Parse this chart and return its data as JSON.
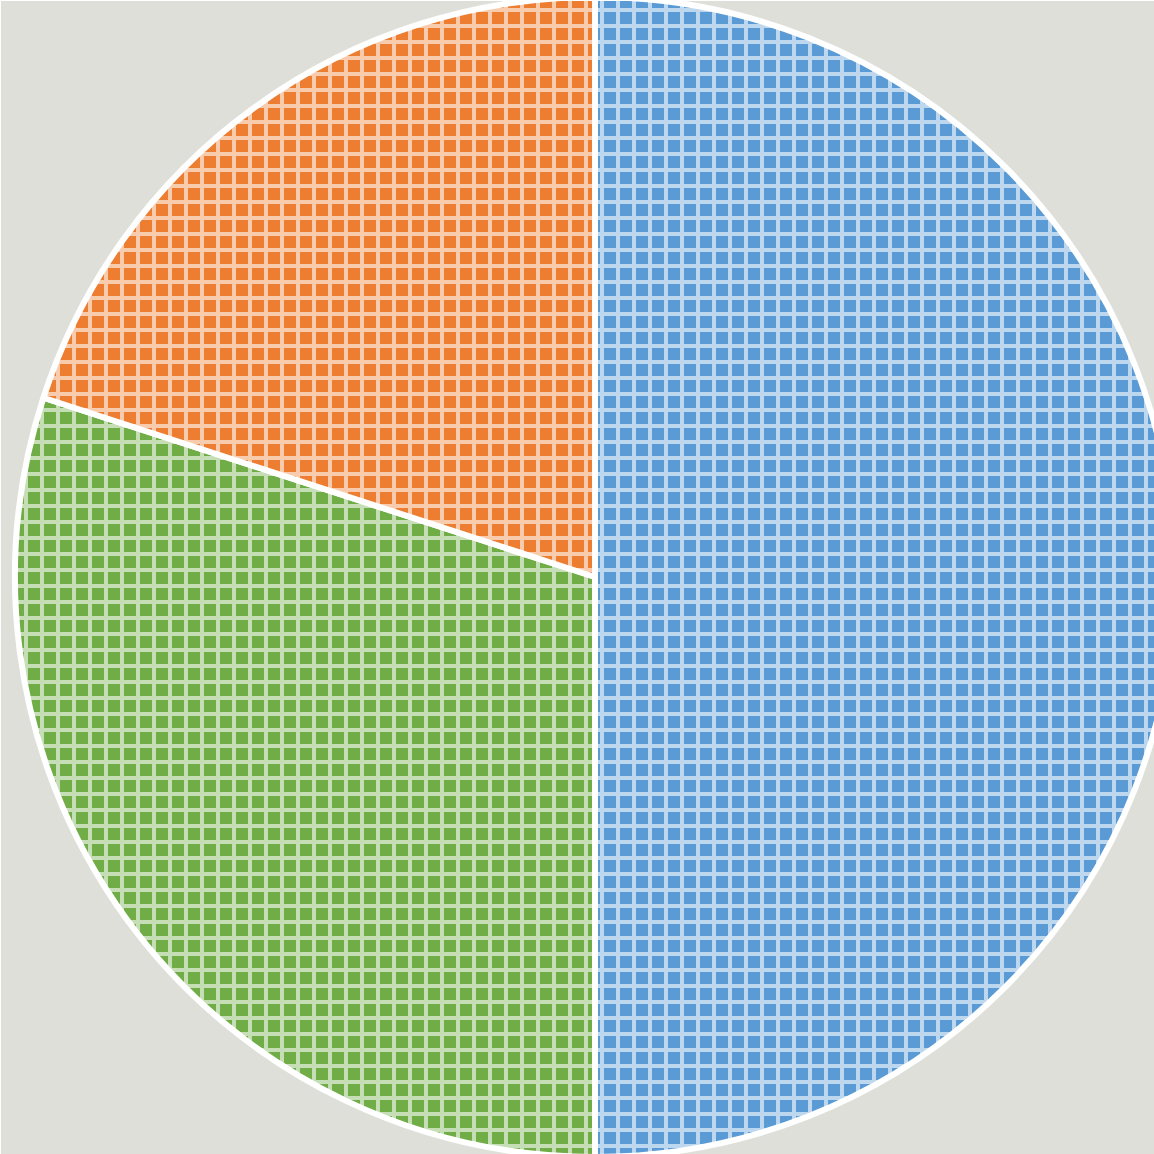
{
  "chart_data": {
    "type": "pie",
    "categories": [
      null,
      null,
      null
    ],
    "values": [
      50,
      30,
      20
    ],
    "colors": [
      "#5b9bd5",
      "#70ad47",
      "#ed7d31"
    ]
  }
}
